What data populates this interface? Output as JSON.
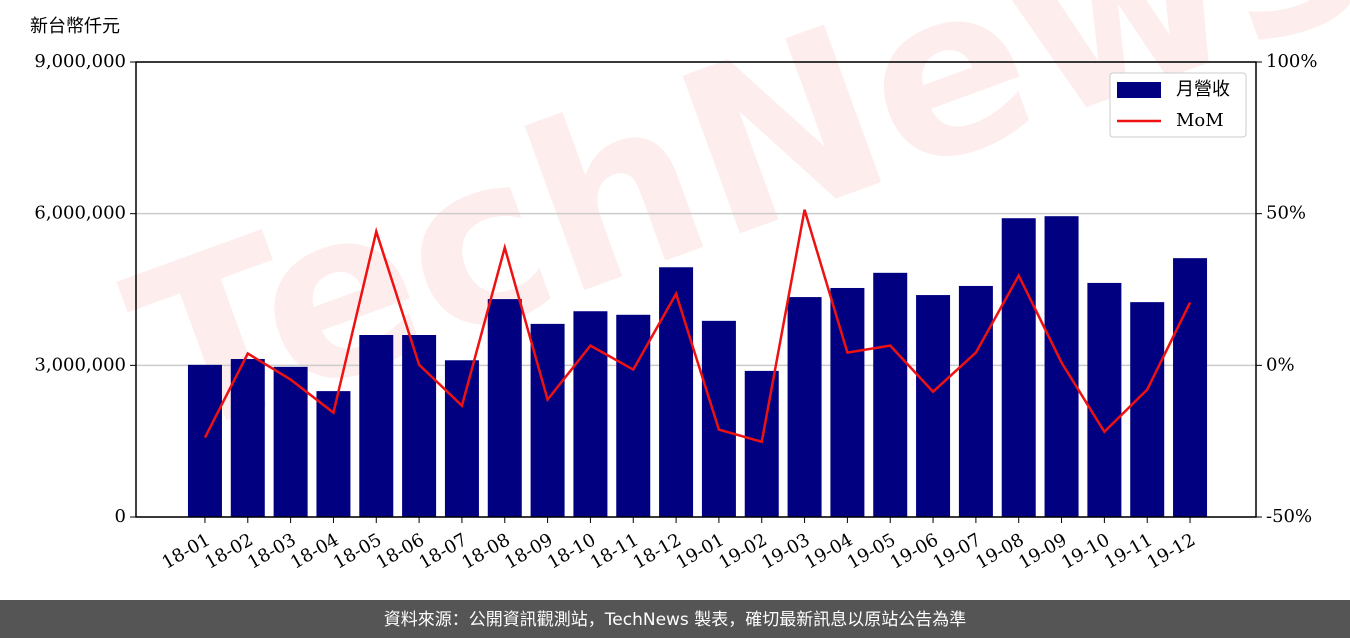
{
  "chart_data": {
    "type": "bar",
    "y_label": "新台幣仟元",
    "watermark": "TechNews",
    "categories": [
      "18-01",
      "18-02",
      "18-03",
      "18-04",
      "18-05",
      "18-06",
      "18-07",
      "18-08",
      "18-09",
      "18-10",
      "18-11",
      "18-12",
      "19-01",
      "19-02",
      "19-03",
      "19-04",
      "19-05",
      "19-06",
      "19-07",
      "19-08",
      "19-09",
      "19-10",
      "19-11",
      "19-12"
    ],
    "series": [
      {
        "name": "月營收",
        "color": "#000080",
        "type": "bar",
        "values": [
          3010000,
          3125000,
          2970000,
          2490000,
          3600000,
          3600000,
          3100000,
          4310000,
          3820000,
          4070000,
          4000000,
          4940000,
          3880000,
          2890000,
          4350000,
          4530000,
          4830000,
          4390000,
          4570000,
          5910000,
          5950000,
          4630000,
          4250000,
          5120000
        ]
      },
      {
        "name": "MoM",
        "color": "#ee1111",
        "type": "line",
        "axis": "y2",
        "values": [
          -23.8,
          3.9,
          -4.7,
          -15.6,
          44.1,
          0.2,
          -13.3,
          38.8,
          -11.3,
          6.5,
          -1.4,
          23.6,
          -21.2,
          -25.2,
          51.3,
          4.2,
          6.5,
          -8.7,
          4.2,
          29.6,
          0.9,
          -21.9,
          -8.0,
          20.7
        ]
      }
    ],
    "ylim": [
      0,
      9000000
    ],
    "yticks": [
      0,
      {
        "value": 3000000,
        "label": "3,000,000"
      },
      {
        "value": 6000000,
        "label": "6,000,000"
      },
      {
        "value": 9000000,
        "label": "9,000,000"
      }
    ],
    "y2lim": [
      -50,
      100
    ],
    "y2ticks": [
      {
        "value": -50,
        "label": "-50%"
      },
      {
        "value": 0,
        "label": "0%"
      },
      {
        "value": 50,
        "label": "50%"
      },
      {
        "value": 100,
        "label": "100%"
      }
    ],
    "grid": true,
    "legend": "upper right"
  },
  "footer": "資料來源：公開資訊觀測站，TechNews 製表，確切最新訊息以原站公告為準"
}
